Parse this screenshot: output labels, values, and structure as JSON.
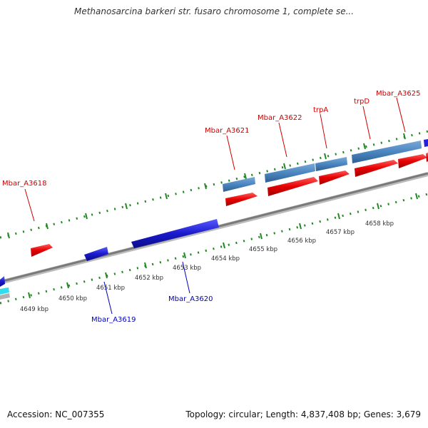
{
  "title": "Methanosarcina barkeri str. fusaro chromosome 1, complete se...",
  "footer": {
    "accession": "Accession: NC_007355",
    "summary": "Topology: circular; Length: 4,837,408 bp; Genes: 3,679"
  },
  "colors": {
    "forward_cds": "#e60000",
    "forward_gene": "#4a86c0",
    "reverse_cds": "#1a1acc",
    "forward_label": "#cc0000",
    "reverse_label": "#0000bb",
    "tick": "#228822",
    "backbone": "#808080"
  },
  "scale_labels": [
    "4649 kbp",
    "4650 kbp",
    "4651 kbp",
    "4652 kbp",
    "4653 kbp",
    "4654 kbp",
    "4655 kbp",
    "4656 kbp",
    "4657 kbp",
    "4658 kbp"
  ],
  "forward_genes": [
    "Mbar_A3618",
    "Mbar_A3621",
    "Mbar_A3622",
    "trpA",
    "trpD",
    "Mbar_A3625"
  ],
  "reverse_genes": [
    "Mbar_A3619",
    "Mbar_A3620"
  ]
}
